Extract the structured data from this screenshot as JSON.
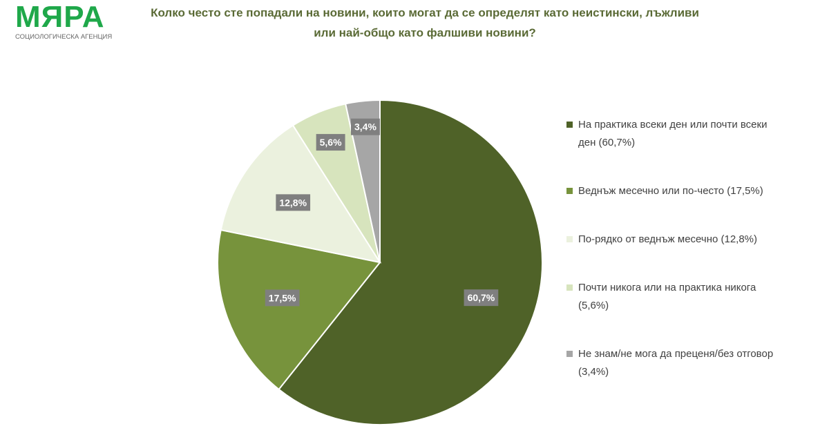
{
  "logo": {
    "name": "МЯРА",
    "subtitle": "СОЦИОЛОГИЧЕСКА АГЕНЦИЯ"
  },
  "chart_data": {
    "type": "pie",
    "title": "Колко често сте попадали на новини, които могат да се определят като неистински, лъжливи или най-общо като фалшиви новини?",
    "categories": [
      "На практика всеки ден или почти всеки ден (60,7%)",
      "Веднъж месечно или по-често (17,5%)",
      "По-рядко от веднъж месечно (12,8%)",
      "Почти никога или на практика никога (5,6%)",
      "Не знам/не мога да преценя/без отговор (3,4%)"
    ],
    "values": [
      60.7,
      17.5,
      12.8,
      5.6,
      3.4
    ],
    "data_labels": [
      "60,7%",
      "17,5%",
      "12,8%",
      "5,6%",
      "3,4%"
    ],
    "colors": [
      "#4f6228",
      "#77933c",
      "#ebf1de",
      "#d7e4bd",
      "#a6a6a6"
    ],
    "legend": "right",
    "start": "top, clockwise"
  }
}
